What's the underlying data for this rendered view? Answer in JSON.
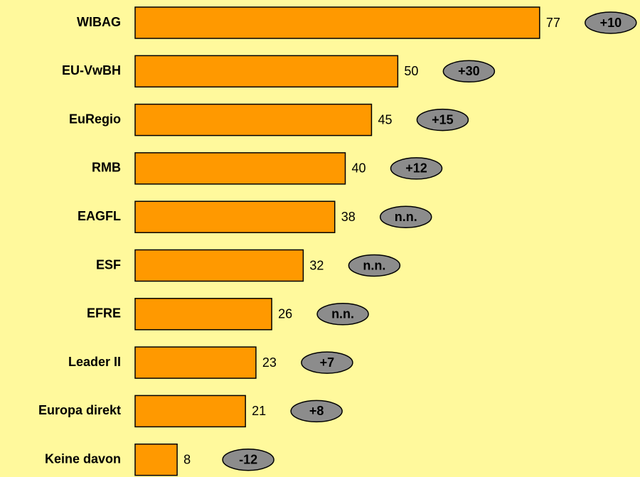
{
  "chart_data": {
    "type": "bar",
    "orientation": "horizontal",
    "categories": [
      "WIBAG",
      "EU-VwBH",
      "EuRegio",
      "RMB",
      "EAGFL",
      "ESF",
      "EFRE",
      "Leader II",
      "Europa direkt",
      "Keine davon"
    ],
    "values": [
      77,
      50,
      45,
      40,
      38,
      32,
      26,
      23,
      21,
      8
    ],
    "annotations": [
      "+10",
      "+30",
      "+15",
      "+12",
      "n.n.",
      "n.n.",
      "n.n.",
      "+7",
      "+8",
      "-12"
    ],
    "color": "#ff9900",
    "background": "#fff99c",
    "annotation_color": "#8c8c8c",
    "xlim": [
      0,
      80
    ]
  }
}
